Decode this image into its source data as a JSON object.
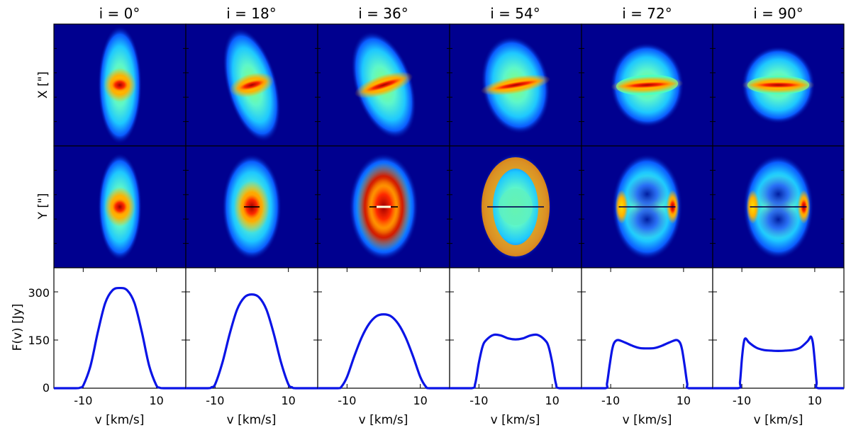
{
  "chart_data": {
    "type": "line",
    "panel_titles": [
      "i = 0°",
      "i = 18°",
      "i = 36°",
      "i = 54°",
      "i = 72°",
      "i = 90°"
    ],
    "row_labels": {
      "row1": "X [\"]",
      "row2": "Y [\"]",
      "row3": "F(v) [Jy]"
    },
    "xlabel": "v [km/s]",
    "xticks": [
      -10,
      10
    ],
    "xtick_labels": [
      "-10",
      "10"
    ],
    "xlim": [
      -18,
      18
    ],
    "yticks": [
      0,
      150,
      300
    ],
    "ytick_labels": [
      "0",
      "150",
      "300"
    ],
    "ylim": [
      0,
      375
    ],
    "image_rows": [
      "X",
      "Y"
    ],
    "colormap": "jet",
    "image_background": "#00008f",
    "line_color": "#0a14e6",
    "grid": false,
    "series": [
      {
        "inclination_deg": 0,
        "profile": "single-peak",
        "x": [
          -18,
          -12,
          -10.8,
          -10,
          -8,
          -6,
          -4,
          -2,
          0,
          2,
          4,
          6,
          8,
          10,
          10.8,
          12,
          18
        ],
        "values": [
          0,
          0,
          2,
          8,
          70,
          175,
          265,
          305,
          312,
          305,
          265,
          175,
          70,
          8,
          2,
          0,
          0
        ]
      },
      {
        "inclination_deg": 18,
        "profile": "single-peak",
        "x": [
          -18,
          -12,
          -11,
          -10,
          -8,
          -6,
          -4,
          -2,
          0,
          2,
          4,
          6,
          8,
          10,
          11,
          12,
          18
        ],
        "values": [
          0,
          0,
          3,
          12,
          80,
          170,
          245,
          283,
          292,
          283,
          245,
          170,
          80,
          12,
          3,
          0,
          0
        ]
      },
      {
        "inclination_deg": 36,
        "profile": "single-peak",
        "x": [
          -18,
          -12.5,
          -11.5,
          -10,
          -8,
          -6,
          -4,
          -2,
          0,
          2,
          4,
          6,
          8,
          10,
          11.5,
          12.5,
          18
        ],
        "values": [
          0,
          0,
          5,
          35,
          100,
          158,
          200,
          224,
          230,
          224,
          200,
          158,
          100,
          35,
          5,
          0,
          0
        ]
      },
      {
        "inclination_deg": 54,
        "profile": "double-peak",
        "x": [
          -18,
          -12,
          -11,
          -10,
          -9,
          -8,
          -6,
          -4,
          -2,
          0,
          2,
          4,
          6,
          8,
          9,
          10,
          11,
          12,
          18
        ],
        "values": [
          0,
          0,
          15,
          80,
          130,
          150,
          166,
          164,
          155,
          152,
          155,
          164,
          166,
          150,
          130,
          80,
          15,
          0,
          0
        ]
      },
      {
        "inclination_deg": 72,
        "profile": "double-peak",
        "x": [
          -18,
          -11.5,
          -11,
          -10.3,
          -9.6,
          -9,
          -8,
          -6,
          -4,
          -2,
          0,
          2,
          4,
          6,
          8,
          9,
          9.6,
          10.3,
          11,
          11.5,
          18
        ],
        "values": [
          0,
          0,
          15,
          70,
          120,
          142,
          150,
          142,
          132,
          125,
          124,
          125,
          132,
          142,
          150,
          142,
          120,
          70,
          15,
          0,
          0
        ]
      },
      {
        "inclination_deg": 90,
        "profile": "double-peak",
        "x": [
          -18,
          -11,
          -10.5,
          -10,
          -9.5,
          -9,
          -8,
          -6,
          -4,
          -2,
          0,
          2,
          4,
          6,
          8,
          8.6,
          9,
          9.5,
          10,
          10.5,
          11,
          18
        ],
        "values": [
          0,
          0,
          20,
          90,
          140,
          155,
          142,
          126,
          119,
          117,
          116,
          117,
          119,
          126,
          146,
          156,
          160,
          140,
          85,
          20,
          0,
          0
        ]
      }
    ]
  }
}
